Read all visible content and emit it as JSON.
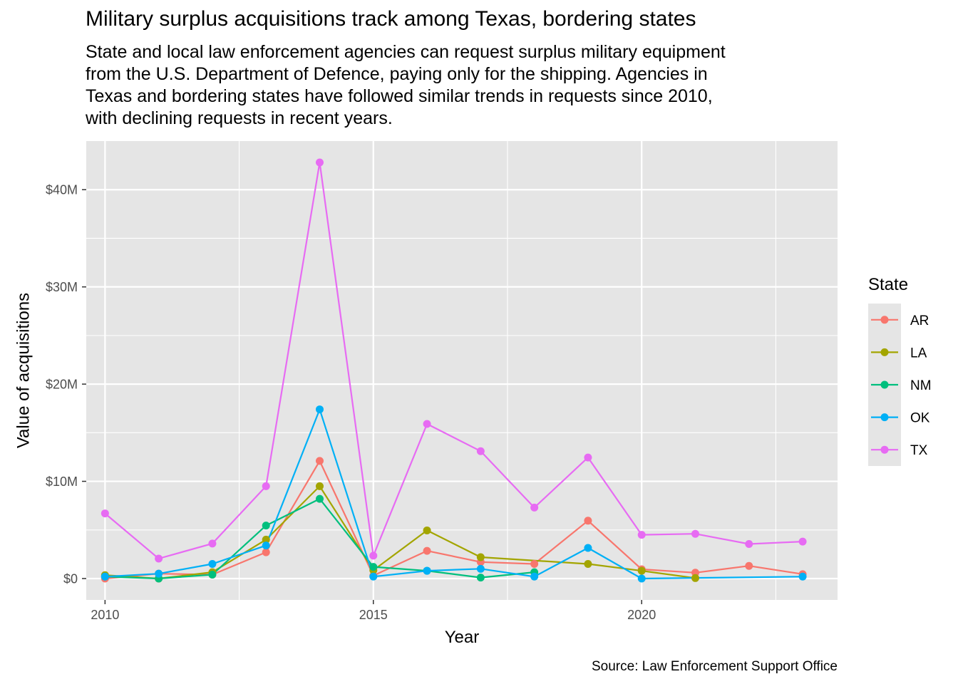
{
  "title": "Military surplus acquisitions track among Texas, bordering states",
  "subtitle_lines": [
    "State and local law enforcement agencies can request surplus military equipment",
    "from the U.S. Department of Defence, paying only for the shipping. Agencies in",
    "Texas and bordering states have followed similar trends in requests since 2010,",
    "with declining requests in recent years."
  ],
  "caption": "Source: Law Enforcement Support Office",
  "colors": {
    "panel": "#e5e5e5",
    "grid": "#ffffff",
    "AR": "#f8766d",
    "LA": "#a3a500",
    "NM": "#00bf7d",
    "OK": "#00b0f6",
    "TX": "#e76bf3"
  },
  "chart_data": {
    "type": "line",
    "title": "Military surplus acquisitions track among Texas, bordering states",
    "xlabel": "Year",
    "ylabel": "Value of acquisitions",
    "xlim": [
      2009.65,
      2023.65
    ],
    "ylim": [
      -2200000,
      45000000
    ],
    "x_ticks": [
      2010,
      2015,
      2020
    ],
    "x_tick_labels": [
      "2010",
      "2015",
      "2020"
    ],
    "x_minor_ticks": [
      2012.5,
      2017.5,
      2022.5
    ],
    "y_ticks": [
      0,
      10000000,
      20000000,
      30000000,
      40000000
    ],
    "y_tick_labels": [
      "$0",
      "$10M",
      "$20M",
      "$30M",
      "$40M"
    ],
    "y_minor_ticks": [
      5000000,
      15000000,
      25000000,
      35000000
    ],
    "grid": true,
    "legend_title": "State",
    "legend_position": "right",
    "series": [
      {
        "name": "AR",
        "points": [
          [
            2010,
            0
          ],
          [
            2011,
            500000
          ],
          [
            2012,
            400000
          ],
          [
            2013,
            2700000
          ],
          [
            2014,
            12100000
          ],
          [
            2015,
            300000
          ],
          [
            2016,
            2850000
          ],
          [
            2017,
            1700000
          ],
          [
            2018,
            1500000
          ],
          [
            2019,
            5950000
          ],
          [
            2020,
            950000
          ],
          [
            2021,
            600000
          ],
          [
            2022,
            1300000
          ],
          [
            2023,
            450000
          ]
        ]
      },
      {
        "name": "LA",
        "points": [
          [
            2010,
            350000
          ],
          [
            2011,
            0
          ],
          [
            2012,
            650000
          ],
          [
            2013,
            4000000
          ],
          [
            2014,
            9500000
          ],
          [
            2015,
            850000
          ],
          [
            2016,
            4950000
          ],
          [
            2017,
            2200000
          ],
          [
            2019,
            1500000
          ],
          [
            2020,
            800000
          ],
          [
            2021,
            50000
          ]
        ]
      },
      {
        "name": "NM",
        "points": [
          [
            2010,
            200000
          ],
          [
            2011,
            0
          ],
          [
            2012,
            400000
          ],
          [
            2013,
            5450000
          ],
          [
            2014,
            8200000
          ],
          [
            2015,
            1200000
          ],
          [
            2016,
            800000
          ],
          [
            2017,
            100000
          ],
          [
            2018,
            650000
          ]
        ]
      },
      {
        "name": "OK",
        "points": [
          [
            2010,
            200000
          ],
          [
            2011,
            500000
          ],
          [
            2012,
            1500000
          ],
          [
            2013,
            3400000
          ],
          [
            2014,
            17400000
          ],
          [
            2015,
            200000
          ],
          [
            2016,
            800000
          ],
          [
            2017,
            1000000
          ],
          [
            2018,
            200000
          ],
          [
            2019,
            3150000
          ],
          [
            2020,
            0
          ],
          [
            2023,
            200000
          ]
        ]
      },
      {
        "name": "TX",
        "points": [
          [
            2010,
            6700000
          ],
          [
            2011,
            2050000
          ],
          [
            2012,
            3600000
          ],
          [
            2013,
            9500000
          ],
          [
            2014,
            42800000
          ],
          [
            2015,
            2350000
          ],
          [
            2016,
            15900000
          ],
          [
            2017,
            13100000
          ],
          [
            2018,
            7300000
          ],
          [
            2019,
            12450000
          ],
          [
            2020,
            4500000
          ],
          [
            2021,
            4600000
          ],
          [
            2022,
            3550000
          ],
          [
            2023,
            3800000
          ]
        ]
      }
    ]
  }
}
